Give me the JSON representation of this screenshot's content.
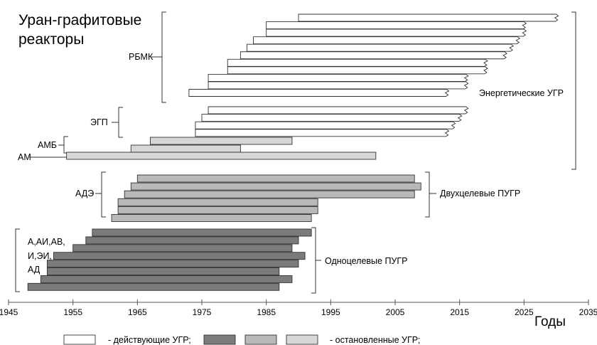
{
  "chart_data": {
    "type": "bar",
    "orientation": "horizontal",
    "title_lines": [
      "Уран-графитовые",
      "реакторы"
    ],
    "xlabel": "Годы",
    "xlim": [
      1945,
      2035
    ],
    "xticks": [
      1945,
      1955,
      1965,
      1975,
      1985,
      1995,
      2005,
      2015,
      2025,
      2035
    ],
    "colors": {
      "operating": "#ffffff",
      "single_purpose": "#7b7b7b",
      "dual_purpose": "#b9b9b9",
      "experimental": "#d7d7d7",
      "outline": "#333333"
    },
    "groups": [
      {
        "name": "РБМК",
        "category": "Энергетические УГР",
        "bars": [
          {
            "start": 1990,
            "end": 2030,
            "status": "operating",
            "jagged": true
          },
          {
            "start": 1985,
            "end": 2025,
            "status": "operating",
            "jagged": true
          },
          {
            "start": 1985,
            "end": 2025,
            "status": "operating",
            "jagged": true
          },
          {
            "start": 1983,
            "end": 2024,
            "status": "operating",
            "jagged": true
          },
          {
            "start": 1982,
            "end": 2023,
            "status": "operating",
            "jagged": true
          },
          {
            "start": 1981,
            "end": 2022,
            "status": "operating",
            "jagged": true
          },
          {
            "start": 1979,
            "end": 2019,
            "status": "operating",
            "jagged": true
          },
          {
            "start": 1979,
            "end": 2019,
            "status": "operating",
            "jagged": true
          },
          {
            "start": 1976,
            "end": 2016,
            "status": "operating",
            "jagged": true
          },
          {
            "start": 1976,
            "end": 2016,
            "status": "operating",
            "jagged": true
          },
          {
            "start": 1973,
            "end": 2013,
            "status": "operating",
            "jagged": true
          }
        ]
      },
      {
        "name": "ЭГП",
        "category": "Энергетические УГР",
        "bars": [
          {
            "start": 1976,
            "end": 2016,
            "status": "operating",
            "jagged": true
          },
          {
            "start": 1975,
            "end": 2015,
            "status": "operating",
            "jagged": true
          },
          {
            "start": 1974,
            "end": 2014,
            "status": "operating",
            "jagged": true
          },
          {
            "start": 1974,
            "end": 2013,
            "status": "operating",
            "jagged": true
          }
        ]
      },
      {
        "name": "АМБ",
        "category": "Энергетические УГР",
        "bars": [
          {
            "start": 1967,
            "end": 1989,
            "status": "experimental"
          },
          {
            "start": 1964,
            "end": 1981,
            "status": "experimental"
          }
        ]
      },
      {
        "name": "АМ",
        "category": "Энергетические УГР",
        "bars": [
          {
            "start": 1954,
            "end": 2002,
            "status": "experimental"
          }
        ]
      },
      {
        "name": "АДЭ",
        "category": "Двухцелевые ПУГР",
        "bars": [
          {
            "start": 1965,
            "end": 2008,
            "status": "dual_purpose"
          },
          {
            "start": 1964,
            "end": 2009,
            "status": "dual_purpose"
          },
          {
            "start": 1963,
            "end": 2008,
            "status": "dual_purpose"
          },
          {
            "start": 1962,
            "end": 1993,
            "status": "dual_purpose"
          },
          {
            "start": 1962,
            "end": 1993,
            "status": "dual_purpose"
          },
          {
            "start": 1961,
            "end": 1992,
            "status": "dual_purpose"
          }
        ]
      },
      {
        "name_lines": [
          "А,АИ,АВ,",
          "И,ЭИ,",
          "АД"
        ],
        "category": "Одноцелевые ПУГР",
        "bars": [
          {
            "start": 1958,
            "end": 1992,
            "status": "single_purpose"
          },
          {
            "start": 1957,
            "end": 1990,
            "status": "single_purpose"
          },
          {
            "start": 1955,
            "end": 1989,
            "status": "single_purpose"
          },
          {
            "start": 1952,
            "end": 1991,
            "status": "single_purpose"
          },
          {
            "start": 1951,
            "end": 1990,
            "status": "single_purpose"
          },
          {
            "start": 1951,
            "end": 1987,
            "status": "single_purpose"
          },
          {
            "start": 1950,
            "end": 1989,
            "status": "single_purpose"
          },
          {
            "start": 1948,
            "end": 1987,
            "status": "single_purpose"
          }
        ]
      }
    ],
    "category_labels": [
      "Энергетические УГР",
      "Двухцелевые ПУГР",
      "Одноцелевые ПУГР"
    ],
    "legend": [
      {
        "swatch": "operating",
        "label": "- действующие УГР;"
      },
      {
        "swatch": "single_purpose",
        "label": ""
      },
      {
        "swatch": "dual_purpose",
        "label": ""
      },
      {
        "swatch": "experimental",
        "label": "- остановленные УГР;"
      }
    ],
    "legend_position": "bottom",
    "grid": false
  }
}
